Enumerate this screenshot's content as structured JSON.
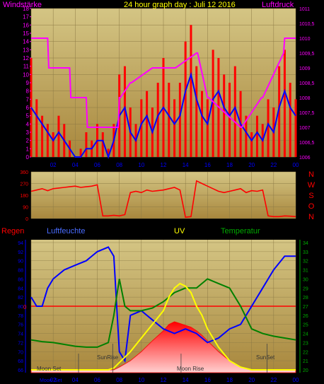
{
  "colors": {
    "background": "#000000",
    "plot_top": "#cfc07a",
    "plot_bottom": "#a9873e",
    "grid": "#8c7a45",
    "wind_gust": "#ff0000",
    "wind_avg": "#0000ff",
    "pressure": "#ff00ff",
    "direction": "#ff0000",
    "humidity": "#0000ff",
    "uv": "#ffff00",
    "temperature": "#008000",
    "rain_zero": "#ff0000",
    "title": "#ffff00",
    "temp_axis": "#00aa00",
    "axis_left": "#ff00ff"
  },
  "chart_data": [
    {
      "type": "line",
      "id": "wind-pressure",
      "title": "24 hour graph day : Juli 12 2016",
      "ylabel_left": "Windstärke",
      "ylabel_right": "Luftdruck",
      "x_ticks": [
        "02",
        "04",
        "06",
        "08",
        "10",
        "12",
        "14",
        "16",
        "18",
        "20",
        "22",
        "00"
      ],
      "xlim": [
        0,
        24
      ],
      "y_left_ticks": [
        "0",
        "1",
        "2",
        "3",
        "4",
        "5",
        "6",
        "7",
        "8",
        "9",
        "10",
        "11",
        "12",
        "13",
        "14",
        "15",
        "16",
        "17",
        "18"
      ],
      "ylim_left": [
        0,
        18
      ],
      "y_right_ticks": [
        "1006",
        "1006,5",
        "1007",
        "1007,5",
        "1008",
        "1008,5",
        "1009",
        "1009,5",
        "1010",
        "1010,5",
        "1011"
      ],
      "ylim_right": [
        1006,
        1011
      ],
      "series": [
        {
          "key": "gust",
          "x": [
            0,
            0.5,
            1,
            1.5,
            2,
            2.5,
            3,
            3.5,
            4,
            4.5,
            5,
            5.5,
            6,
            6.5,
            7,
            7.5,
            8,
            8.5,
            9,
            9.5,
            10,
            10.5,
            11,
            11.5,
            12,
            12.5,
            13,
            13.5,
            14,
            14.5,
            15,
            15.5,
            16,
            16.5,
            17,
            17.5,
            18,
            18.5,
            19,
            19.5,
            20,
            20.5,
            21,
            21.5,
            22,
            22.5,
            23,
            23.5,
            24
          ],
          "values": [
            12,
            7,
            5,
            4,
            3,
            5,
            4,
            2,
            0,
            1,
            3,
            2,
            4,
            3,
            1,
            4,
            10,
            11,
            6,
            4,
            7,
            8,
            6,
            9,
            12,
            9,
            7,
            9,
            14,
            16,
            11,
            8,
            7,
            13,
            12,
            10,
            9,
            11,
            8,
            5,
            3,
            5,
            4,
            7,
            6,
            11,
            13,
            9,
            7
          ]
        },
        {
          "key": "avg",
          "x": [
            0,
            0.5,
            1,
            1.5,
            2,
            2.5,
            3,
            3.5,
            4,
            4.5,
            5,
            5.5,
            6,
            6.5,
            7,
            7.5,
            8,
            8.5,
            9,
            9.5,
            10,
            10.5,
            11,
            11.5,
            12,
            12.5,
            13,
            13.5,
            14,
            14.5,
            15,
            15.5,
            16,
            16.5,
            17,
            17.5,
            18,
            18.5,
            19,
            19.5,
            20,
            20.5,
            21,
            21.5,
            22,
            22.5,
            23,
            23.5,
            24
          ],
          "values": [
            6,
            5,
            4,
            3,
            2,
            3,
            2,
            1,
            0,
            0,
            1,
            1,
            2,
            2,
            0,
            2,
            5,
            6,
            3,
            2,
            4,
            5,
            3,
            5,
            6,
            5,
            4,
            5,
            8,
            10,
            7,
            5,
            4,
            7,
            8,
            6,
            5,
            6,
            4,
            3,
            2,
            3,
            2,
            4,
            3,
            6,
            8,
            6,
            5
          ]
        },
        {
          "key": "pressure",
          "x": [
            0,
            1.5,
            1.6,
            3.5,
            3.6,
            5,
            5.1,
            7.9,
            8,
            8.1,
            9,
            9.1,
            11,
            11.1,
            13,
            13.1,
            15,
            15.1,
            16,
            16.1,
            19,
            19.1,
            20.9,
            21,
            22.9,
            23,
            24
          ],
          "values": [
            1010,
            1010,
            1009,
            1009,
            1008,
            1008,
            1007,
            1007,
            1008,
            1008,
            1008.5,
            1008.5,
            1009,
            1009,
            1009,
            1009,
            1009.5,
            1009.5,
            1008,
            1008,
            1007,
            1007,
            1008,
            1008,
            1009.5,
            1010,
            1010
          ]
        }
      ]
    },
    {
      "type": "scatter",
      "id": "wind-direction",
      "y_ticks": [
        "360",
        "270",
        "180",
        "90",
        "0"
      ],
      "ylim": [
        0,
        360
      ],
      "xlim": [
        0,
        24
      ],
      "compass": [
        "N",
        "W",
        "S",
        "O",
        "N"
      ],
      "series": [
        {
          "key": "direction",
          "x": [
            0,
            0.5,
            1,
            1.5,
            2,
            2.5,
            3,
            3.5,
            4,
            4.5,
            5,
            5.5,
            6,
            6.5,
            7,
            7.5,
            8,
            8.5,
            9,
            9.5,
            10,
            10.5,
            11,
            11.5,
            12,
            12.5,
            13,
            13.5,
            14,
            14.5,
            15,
            15.5,
            16,
            16.5,
            17,
            17.5,
            18,
            18.5,
            19,
            19.5,
            20,
            20.5,
            21,
            21.5,
            22,
            22.5,
            23,
            23.5,
            24
          ],
          "values": [
            210,
            220,
            230,
            215,
            230,
            235,
            240,
            245,
            250,
            240,
            245,
            250,
            260,
            20,
            20,
            25,
            20,
            30,
            200,
            210,
            200,
            220,
            210,
            215,
            220,
            230,
            240,
            220,
            10,
            15,
            290,
            270,
            250,
            230,
            210,
            200,
            210,
            220,
            230,
            200,
            215,
            210,
            220,
            20,
            15,
            15,
            20,
            18,
            15
          ]
        }
      ]
    },
    {
      "type": "line",
      "id": "rain-humidity-uv-temp",
      "ylabel_rain": "Regen",
      "ylabel_humidity": "Luftfeuchte",
      "ylabel_uv": "UV",
      "ylabel_temp": "Temperatur",
      "rain_tick": "0",
      "humidity_ticks": [
        "66",
        "68",
        "70",
        "72",
        "74",
        "76",
        "78",
        "80",
        "82",
        "84",
        "86",
        "88",
        "90",
        "92",
        "94"
      ],
      "ylim_humidity": [
        66,
        94
      ],
      "temp_ticks": [
        "20",
        "21",
        "22",
        "23",
        "24",
        "25",
        "26",
        "27",
        "28",
        "29",
        "30",
        "31",
        "32",
        "33",
        "34"
      ],
      "ylim_temp": [
        20,
        34
      ],
      "x_ticks": [
        "Moon",
        "Set",
        "02",
        "04",
        "06",
        "08",
        "10",
        "12",
        "14",
        "16",
        "18",
        "20",
        "22",
        "00"
      ],
      "xlim": [
        0,
        24
      ],
      "annotations": [
        "Moon Set",
        "SunRise",
        "Moon Rise",
        "SunSet"
      ],
      "series": [
        {
          "key": "humidity",
          "x": [
            0,
            0.5,
            1,
            1.5,
            2,
            3,
            4,
            5,
            6,
            7,
            7.5,
            8,
            8.5,
            9,
            10,
            11,
            12,
            13,
            14,
            15,
            16,
            17,
            18,
            19,
            20,
            21,
            22,
            23,
            24
          ],
          "values": [
            82,
            80,
            80,
            84,
            86,
            88,
            89,
            90,
            92,
            93,
            91,
            70,
            68,
            78,
            79,
            77,
            75,
            74,
            75,
            74,
            72,
            73,
            75,
            76,
            80,
            84,
            88,
            91,
            91
          ]
        },
        {
          "key": "temperature",
          "x": [
            0,
            1,
            2,
            3,
            4,
            5,
            6,
            7,
            7.5,
            8,
            8.5,
            9,
            10,
            11,
            12,
            13,
            14,
            15,
            16,
            17,
            18,
            19,
            20,
            21,
            22,
            23,
            24
          ],
          "values": [
            23.3,
            23.1,
            23,
            22.8,
            22.6,
            22.5,
            22.5,
            23,
            26,
            30,
            27,
            26.5,
            26.5,
            26.8,
            27.5,
            28.5,
            29,
            29,
            30,
            29.5,
            29,
            27,
            24.5,
            24,
            23.7,
            23.5,
            23.3
          ]
        },
        {
          "key": "uv",
          "x": [
            0,
            7,
            7.5,
            8,
            9,
            10,
            11,
            12,
            12.5,
            13,
            13.5,
            14,
            14.5,
            15,
            15.5,
            16,
            17,
            18,
            19,
            20,
            24
          ],
          "values": [
            20,
            20,
            20.2,
            20.8,
            22,
            23.5,
            25,
            26.5,
            28,
            29,
            29.5,
            29.2,
            28.5,
            27,
            26,
            24.5,
            22.5,
            21,
            20.3,
            20,
            20
          ]
        },
        {
          "key": "uv_fill",
          "x": [
            0,
            7,
            7.5,
            8,
            9,
            10,
            11,
            12,
            12.5,
            13,
            13.5,
            14,
            14.5,
            15,
            15.5,
            16,
            17,
            18,
            19,
            20,
            24
          ],
          "values": [
            20,
            20,
            20,
            20.3,
            21,
            22,
            23.2,
            24.3,
            25,
            25.3,
            25.1,
            24.9,
            24.7,
            24.3,
            23.8,
            23.2,
            22,
            21,
            20.3,
            20,
            20
          ]
        }
      ]
    }
  ]
}
